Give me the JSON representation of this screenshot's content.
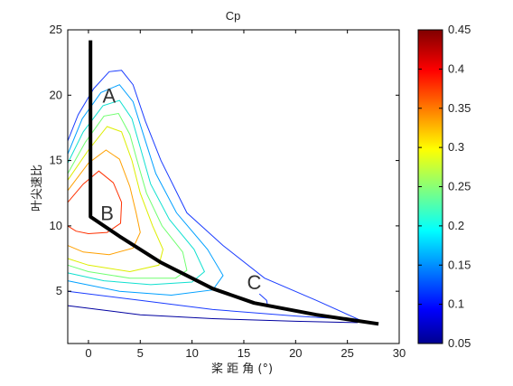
{
  "chart_data": {
    "type": "contour",
    "title": "Cp",
    "xlabel": "桨 距 角 (°)",
    "ylabel": "叶尖速比",
    "xlim": [
      -2,
      30
    ],
    "ylim": [
      1,
      25
    ],
    "xticks": [
      0,
      5,
      10,
      15,
      20,
      25,
      30
    ],
    "yticks": [
      5,
      10,
      15,
      20,
      25
    ],
    "grid": false,
    "colorbar": {
      "range": [
        0.05,
        0.45
      ],
      "ticks": [
        0.05,
        0.1,
        0.15,
        0.2,
        0.25,
        0.3,
        0.35,
        0.4,
        0.45
      ],
      "colormap": "jet",
      "placement": "right"
    },
    "contour_levels": [
      {
        "level": 0.05,
        "color": "#0000a0"
      },
      {
        "level": 0.1,
        "color": "#1a3cff"
      },
      {
        "level": 0.15,
        "color": "#00a0ff"
      },
      {
        "level": 0.2,
        "color": "#10e0d0"
      },
      {
        "level": 0.25,
        "color": "#70ff70"
      },
      {
        "level": 0.3,
        "color": "#ddee00"
      },
      {
        "level": 0.35,
        "color": "#ffa000"
      },
      {
        "level": 0.4,
        "color": "#ff3000"
      },
      {
        "level": 0.45,
        "color": "#a00000"
      }
    ],
    "control_curve": {
      "color": "#000000",
      "points": [
        [
          0.2,
          24.2
        ],
        [
          0.2,
          10.7
        ],
        [
          3,
          9.2
        ],
        [
          7,
          7.2
        ],
        [
          12,
          5.2
        ],
        [
          16,
          4.1
        ],
        [
          22,
          3.2
        ],
        [
          28,
          2.5
        ]
      ]
    },
    "region_labels": [
      {
        "text": "A",
        "x": 2,
        "y": 20
      },
      {
        "text": "B",
        "x": 1.8,
        "y": 11
      },
      {
        "text": "C",
        "x": 16,
        "y": 5.7
      }
    ]
  }
}
